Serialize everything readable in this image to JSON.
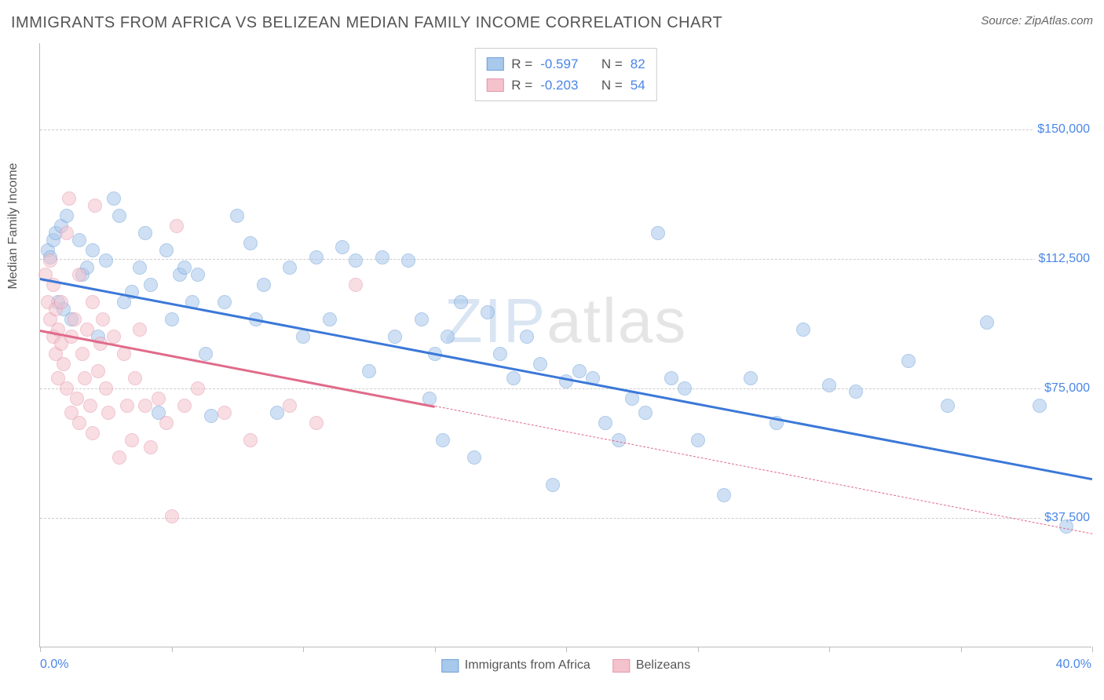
{
  "title": "IMMIGRANTS FROM AFRICA VS BELIZEAN MEDIAN FAMILY INCOME CORRELATION CHART",
  "source_label": "Source:",
  "source_name": "ZipAtlas.com",
  "watermark_a": "ZIP",
  "watermark_b": "atlas",
  "y_axis_title": "Median Family Income",
  "chart": {
    "type": "scatter",
    "xlim": [
      0,
      40
    ],
    "ylim": [
      0,
      175000
    ],
    "x_unit": "%",
    "y_prefix": "$",
    "x_min_label": "0.0%",
    "x_max_label": "40.0%",
    "y_gridlines": [
      37500,
      75000,
      112500,
      150000
    ],
    "y_labels": [
      "$37,500",
      "$75,000",
      "$112,500",
      "$150,000"
    ],
    "x_ticks": [
      0,
      5,
      10,
      15,
      20,
      25,
      30,
      35,
      40
    ],
    "background_color": "#ffffff",
    "grid_color": "#cccccc",
    "grid_dash": true,
    "point_radius": 9,
    "point_opacity": 0.55,
    "series": [
      {
        "id": "africa",
        "label": "Immigrants from Africa",
        "fill": "#a8c8ec",
        "stroke": "#6fa0d8",
        "trend_color": "#3b78d8",
        "trend_width": 2.5,
        "trend_dash": false,
        "r_value": "-0.597",
        "n_value": "82",
        "trend": {
          "x1": 0,
          "y1": 107000,
          "x2": 40,
          "y2": 49000
        },
        "points": [
          [
            0.3,
            115000
          ],
          [
            0.4,
            113000
          ],
          [
            0.5,
            118000
          ],
          [
            0.6,
            120000
          ],
          [
            0.7,
            100000
          ],
          [
            0.8,
            122000
          ],
          [
            0.9,
            98000
          ],
          [
            1.0,
            125000
          ],
          [
            1.2,
            95000
          ],
          [
            1.5,
            118000
          ],
          [
            1.6,
            108000
          ],
          [
            1.8,
            110000
          ],
          [
            2.0,
            115000
          ],
          [
            2.2,
            90000
          ],
          [
            2.5,
            112000
          ],
          [
            2.8,
            130000
          ],
          [
            3.0,
            125000
          ],
          [
            3.2,
            100000
          ],
          [
            3.5,
            103000
          ],
          [
            3.8,
            110000
          ],
          [
            4.0,
            120000
          ],
          [
            4.2,
            105000
          ],
          [
            4.5,
            68000
          ],
          [
            4.8,
            115000
          ],
          [
            5.0,
            95000
          ],
          [
            5.3,
            108000
          ],
          [
            5.5,
            110000
          ],
          [
            5.8,
            100000
          ],
          [
            6.0,
            108000
          ],
          [
            6.3,
            85000
          ],
          [
            6.5,
            67000
          ],
          [
            7.0,
            100000
          ],
          [
            7.5,
            125000
          ],
          [
            8.0,
            117000
          ],
          [
            8.2,
            95000
          ],
          [
            8.5,
            105000
          ],
          [
            9.0,
            68000
          ],
          [
            9.5,
            110000
          ],
          [
            10.0,
            90000
          ],
          [
            10.5,
            113000
          ],
          [
            11.0,
            95000
          ],
          [
            11.5,
            116000
          ],
          [
            12.0,
            112000
          ],
          [
            12.5,
            80000
          ],
          [
            13.0,
            113000
          ],
          [
            13.5,
            90000
          ],
          [
            14.0,
            112000
          ],
          [
            14.5,
            95000
          ],
          [
            15.0,
            85000
          ],
          [
            15.5,
            90000
          ],
          [
            14.8,
            72000
          ],
          [
            15.3,
            60000
          ],
          [
            16.0,
            100000
          ],
          [
            16.5,
            55000
          ],
          [
            17.0,
            97000
          ],
          [
            17.5,
            85000
          ],
          [
            18.0,
            78000
          ],
          [
            18.5,
            90000
          ],
          [
            19.0,
            82000
          ],
          [
            19.5,
            47000
          ],
          [
            20.0,
            77000
          ],
          [
            20.5,
            80000
          ],
          [
            21.0,
            78000
          ],
          [
            21.5,
            65000
          ],
          [
            22.0,
            60000
          ],
          [
            22.5,
            72000
          ],
          [
            23.0,
            68000
          ],
          [
            23.5,
            120000
          ],
          [
            24.0,
            78000
          ],
          [
            24.5,
            75000
          ],
          [
            25.0,
            60000
          ],
          [
            26.0,
            44000
          ],
          [
            27.0,
            78000
          ],
          [
            28.0,
            65000
          ],
          [
            29.0,
            92000
          ],
          [
            30.0,
            76000
          ],
          [
            31.0,
            74000
          ],
          [
            33.0,
            83000
          ],
          [
            34.5,
            70000
          ],
          [
            36.0,
            94000
          ],
          [
            38.0,
            70000
          ],
          [
            39.0,
            35000
          ]
        ]
      },
      {
        "id": "belizeans",
        "label": "Belizeans",
        "fill": "#f4c2cd",
        "stroke": "#e597ab",
        "trend_color": "#e06b8a",
        "trend_width": 2.5,
        "trend_dash_extend": true,
        "r_value": "-0.203",
        "n_value": "54",
        "trend": {
          "x1": 0,
          "y1": 92000,
          "x2": 15,
          "y2": 70000
        },
        "trend_dash": {
          "x1": 15,
          "y1": 70000,
          "x2": 40,
          "y2": 33000
        },
        "points": [
          [
            0.2,
            108000
          ],
          [
            0.3,
            100000
          ],
          [
            0.4,
            95000
          ],
          [
            0.4,
            112000
          ],
          [
            0.5,
            90000
          ],
          [
            0.5,
            105000
          ],
          [
            0.6,
            98000
          ],
          [
            0.6,
            85000
          ],
          [
            0.7,
            92000
          ],
          [
            0.7,
            78000
          ],
          [
            0.8,
            88000
          ],
          [
            0.8,
            100000
          ],
          [
            0.9,
            82000
          ],
          [
            1.0,
            120000
          ],
          [
            1.0,
            75000
          ],
          [
            1.1,
            130000
          ],
          [
            1.2,
            90000
          ],
          [
            1.2,
            68000
          ],
          [
            1.3,
            95000
          ],
          [
            1.4,
            72000
          ],
          [
            1.5,
            108000
          ],
          [
            1.5,
            65000
          ],
          [
            1.6,
            85000
          ],
          [
            1.7,
            78000
          ],
          [
            1.8,
            92000
          ],
          [
            1.9,
            70000
          ],
          [
            2.0,
            100000
          ],
          [
            2.0,
            62000
          ],
          [
            2.1,
            128000
          ],
          [
            2.2,
            80000
          ],
          [
            2.3,
            88000
          ],
          [
            2.4,
            95000
          ],
          [
            2.5,
            75000
          ],
          [
            2.6,
            68000
          ],
          [
            2.8,
            90000
          ],
          [
            3.0,
            55000
          ],
          [
            3.2,
            85000
          ],
          [
            3.3,
            70000
          ],
          [
            3.5,
            60000
          ],
          [
            3.6,
            78000
          ],
          [
            3.8,
            92000
          ],
          [
            4.0,
            70000
          ],
          [
            4.2,
            58000
          ],
          [
            4.5,
            72000
          ],
          [
            4.8,
            65000
          ],
          [
            5.0,
            38000
          ],
          [
            5.2,
            122000
          ],
          [
            5.5,
            70000
          ],
          [
            6.0,
            75000
          ],
          [
            7.0,
            68000
          ],
          [
            8.0,
            60000
          ],
          [
            9.5,
            70000
          ],
          [
            10.5,
            65000
          ],
          [
            12.0,
            105000
          ]
        ]
      }
    ]
  },
  "stats_box": {
    "r_label": "R =",
    "n_label": "N ="
  }
}
